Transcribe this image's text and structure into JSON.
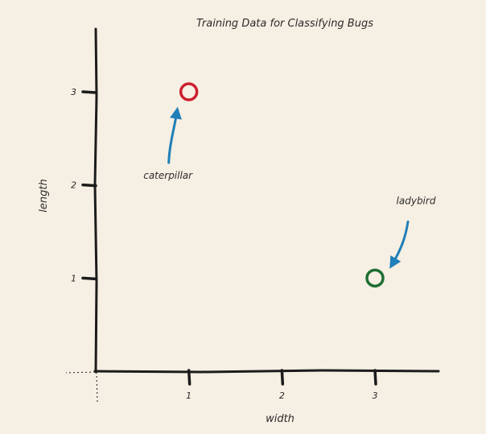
{
  "colors": {
    "background": "#f6efe3",
    "axis": "#1c1c1c",
    "caterpillar": "#cc1f2e",
    "ladybird": "#1f6e33",
    "arrow": "#1f7fb8"
  },
  "chart_data": {
    "type": "scatter",
    "title": "Training Data for Classifying Bugs",
    "xlabel": "width",
    "ylabel": "length",
    "xlim": [
      0,
      3.7
    ],
    "ylim": [
      0,
      3.7
    ],
    "xticks": [
      1,
      2,
      3
    ],
    "yticks": [
      1,
      2,
      3
    ],
    "grid": false,
    "marker": "open-circle",
    "points": [
      {
        "label": "caterpillar",
        "x": 1,
        "y": 3,
        "color": "#cc1f2e",
        "arrow_color": "#1f7fb8"
      },
      {
        "label": "ladybird",
        "x": 3,
        "y": 1,
        "color": "#1f6e33",
        "arrow_color": "#1f7fb8"
      }
    ]
  }
}
